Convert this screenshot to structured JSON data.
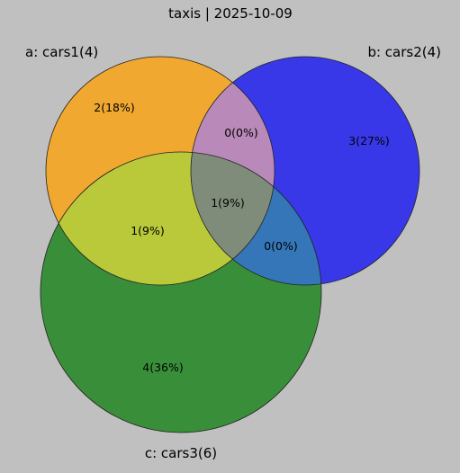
{
  "title": "taxis | 2025-10-09",
  "sets": {
    "a": {
      "label": "a: cars1(4)",
      "color": "#f0a830"
    },
    "b": {
      "label": "b: cars2(4)",
      "color": "#2020f0"
    },
    "c": {
      "label": "c: cars3(6)",
      "color": "#2a8a2a"
    }
  },
  "regions": {
    "a_only": "2(18%)",
    "b_only": "3(27%)",
    "c_only": "4(36%)",
    "ab_only": "0(0%)",
    "ac_only": "1(9%)",
    "bc_only": "0(0%)",
    "abc": "1(9%)"
  },
  "region_colors": {
    "ab": "#b98ab9",
    "ac": "#b9c93a",
    "bc": "#3576b8",
    "abc": "#7f8c7a"
  }
}
